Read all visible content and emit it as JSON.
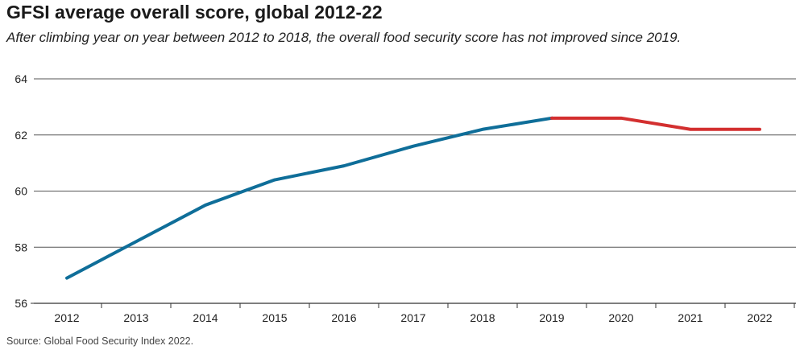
{
  "chart_data": {
    "type": "line",
    "title": "GFSI average overall score, global 2012-22",
    "subtitle": "After climbing year on year between 2012 to 2018, the overall food security score has not improved since 2019.",
    "source": "Source: Global Food Security Index 2022.",
    "xlabel": "",
    "ylabel": "",
    "categories": [
      "2012",
      "2013",
      "2014",
      "2015",
      "2016",
      "2017",
      "2018",
      "2019",
      "2020",
      "2021",
      "2022"
    ],
    "series": [
      {
        "name": "Overall score (2012-2019)",
        "color": "#0f6e99",
        "values": [
          56.9,
          58.2,
          59.5,
          60.4,
          60.9,
          61.6,
          62.2,
          62.6,
          null,
          null,
          null
        ]
      },
      {
        "name": "Overall score (2019-2022)",
        "color": "#d32f2f",
        "values": [
          null,
          null,
          null,
          null,
          null,
          null,
          null,
          62.6,
          62.6,
          62.2,
          62.2
        ]
      }
    ],
    "ylim": [
      56,
      64
    ],
    "yticks": [
      56,
      58,
      60,
      62,
      64
    ],
    "grid": true,
    "legend": "none"
  }
}
